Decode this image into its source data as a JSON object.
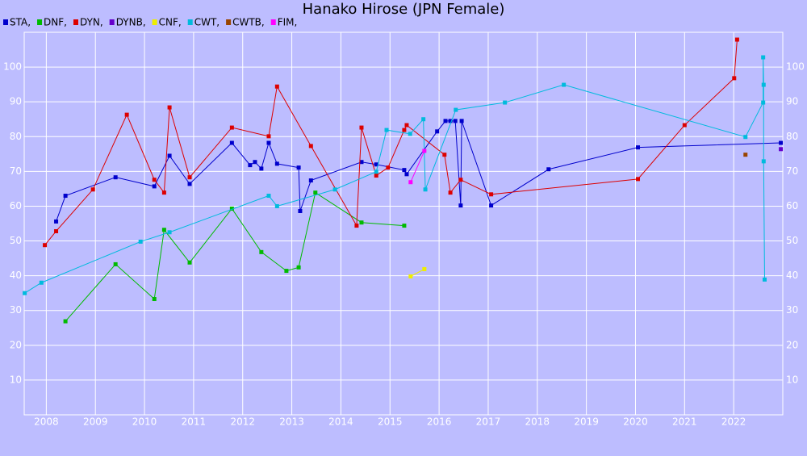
{
  "chart_data": {
    "type": "line",
    "title": "Hanako Hirose (JPN Female)",
    "xlim": [
      2007.55,
      2023.0
    ],
    "xticks": [
      2008,
      2009,
      2010,
      2011,
      2012,
      2013,
      2014,
      2015,
      2016,
      2017,
      2018,
      2019,
      2020,
      2021,
      2022
    ],
    "ylim": [
      0,
      110
    ],
    "yticks": [
      10,
      20,
      30,
      40,
      50,
      60,
      70,
      80,
      90,
      100
    ],
    "grid": true,
    "right_axis": true,
    "legend": "top-left",
    "series": [
      {
        "name": "STA,",
        "color": "#0000cc",
        "x": [
          2008.2,
          2008.39,
          2009.41,
          2010.2,
          2010.51,
          2010.92,
          2011.78,
          2012.15,
          2012.25,
          2012.38,
          2012.53,
          2012.7,
          2013.14,
          2013.17,
          2013.39,
          2014.42,
          2014.72,
          2015.29,
          2015.34,
          2015.96,
          2016.13,
          2016.23,
          2016.33,
          2016.44,
          2016.46,
          2017.06,
          2018.23,
          2020.05,
          2022.96
        ],
        "values": [
          55.6,
          63.0,
          68.3,
          65.7,
          74.5,
          66.4,
          78.2,
          71.8,
          72.7,
          70.8,
          78.2,
          72.2,
          71.1,
          58.6,
          67.4,
          72.7,
          72.0,
          70.4,
          69.2,
          81.5,
          84.5,
          84.5,
          84.5,
          60.2,
          84.5,
          60.2,
          70.6,
          76.9,
          78.2
        ]
      },
      {
        "name": "DNF,",
        "color": "#00bb00",
        "x": [
          2008.39,
          2009.41,
          2010.2,
          2010.4,
          2010.92,
          2011.78,
          2012.38,
          2012.89,
          2013.14,
          2013.48,
          2014.42,
          2015.29
        ],
        "values": [
          26.9,
          43.3,
          33.3,
          53.2,
          43.8,
          59.3,
          46.8,
          41.4,
          42.4,
          63.9,
          55.3,
          54.4
        ]
      },
      {
        "name": "DYN,",
        "color": "#dd0000",
        "x": [
          2007.97,
          2008.2,
          2008.95,
          2009.64,
          2010.2,
          2010.4,
          2010.51,
          2010.92,
          2011.78,
          2012.53,
          2012.7,
          2013.39,
          2014.32,
          2014.42,
          2014.72,
          2014.96,
          2015.29,
          2015.34,
          2016.11,
          2016.23,
          2016.44,
          2017.06,
          2020.05,
          2021.0,
          2022.01,
          2022.07
        ],
        "values": [
          48.8,
          52.8,
          64.8,
          86.3,
          67.6,
          63.9,
          88.4,
          68.3,
          82.6,
          80.1,
          94.4,
          77.3,
          54.4,
          82.6,
          68.8,
          71.1,
          81.9,
          83.3,
          74.8,
          63.9,
          67.6,
          63.4,
          67.8,
          83.3,
          96.8,
          107.9
        ]
      },
      {
        "name": "DYNB,",
        "color": "#6600cc",
        "x": [
          2022.96
        ],
        "values": [
          76.4
        ]
      },
      {
        "name": "CNF,",
        "color": "#eeee00",
        "x": [
          2015.42,
          2015.7
        ],
        "values": [
          39.8,
          41.9
        ]
      },
      {
        "name": "CWT,",
        "color": "#00bbdd",
        "x": [
          2007.56,
          2007.9,
          2009.92,
          2010.51,
          2012.53,
          2012.7,
          2013.88,
          2014.72,
          2014.93,
          2015.41,
          2015.68,
          2015.72,
          2016.34,
          2017.34,
          2018.54,
          2022.24,
          2022.6,
          2022.6,
          2022.61,
          2022.61,
          2022.63
        ],
        "values": [
          35.0,
          38.0,
          49.8,
          52.5,
          63.0,
          60.0,
          64.8,
          69.9,
          81.9,
          80.8,
          85.0,
          64.8,
          87.7,
          89.8,
          94.9,
          79.9,
          89.8,
          102.8,
          94.9,
          72.9,
          38.9
        ]
      },
      {
        "name": "CWTB,",
        "color": "#994400",
        "x": [
          2022.24
        ],
        "values": [
          74.8
        ]
      },
      {
        "name": "FIM,",
        "color": "#ff00ff",
        "x": [
          2015.42,
          2015.7
        ],
        "values": [
          66.9,
          75.9
        ]
      }
    ]
  }
}
